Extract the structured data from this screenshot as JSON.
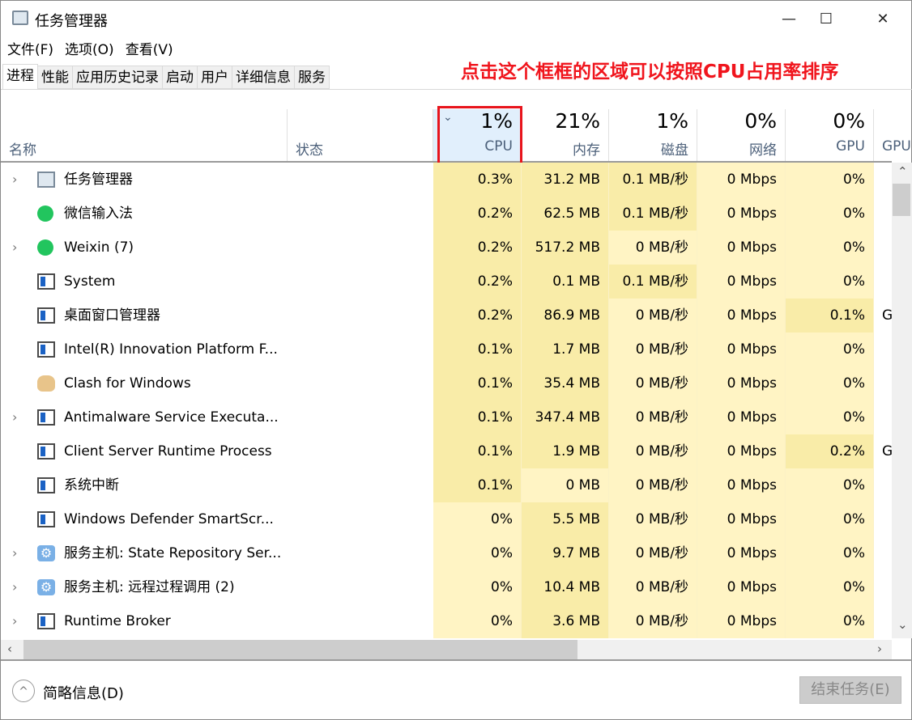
{
  "window": {
    "title": "任务管理器",
    "minimize": "—",
    "maximize": "☐",
    "close": "✕"
  },
  "menu": [
    "文件(F)",
    "选项(O)",
    "查看(V)"
  ],
  "tabs": [
    "进程",
    "性能",
    "应用历史记录",
    "启动",
    "用户",
    "详细信息",
    "服务"
  ],
  "annotation": "点击这个框框的区域可以按照CPU占用率排序",
  "header": {
    "name": "名称",
    "status": "状态",
    "cpu": {
      "pct": "1%",
      "label": "CPU",
      "sorted": "descending"
    },
    "memory": {
      "pct": "21%",
      "label": "内存"
    },
    "disk": {
      "pct": "1%",
      "label": "磁盘"
    },
    "network": {
      "pct": "0%",
      "label": "网络"
    },
    "gpu": {
      "pct": "0%",
      "label": "GPU"
    },
    "gpu_engine": {
      "label": "GPU"
    }
  },
  "heat_colors": {
    "low": "#fff4c4",
    "high": "#f9eca8",
    "selected_header": "#e1effc",
    "annotation": "#f0151d"
  },
  "rows": [
    {
      "name": "任务管理器",
      "icon": "task-manager-icon",
      "expandable": true,
      "cpu": "0.3%",
      "memory": "31.2 MB",
      "disk": "0.1 MB/秒",
      "network": "0 Mbps",
      "gpu": "0%",
      "gpu_engine": "",
      "heat": [
        1,
        1,
        1,
        0,
        0
      ]
    },
    {
      "name": "微信输入法",
      "icon": "wechat-ime-icon",
      "expandable": false,
      "cpu": "0.2%",
      "memory": "62.5 MB",
      "disk": "0.1 MB/秒",
      "network": "0 Mbps",
      "gpu": "0%",
      "gpu_engine": "",
      "heat": [
        1,
        1,
        1,
        0,
        0
      ]
    },
    {
      "name": "Weixin (7)",
      "icon": "weixin-icon",
      "expandable": true,
      "cpu": "0.2%",
      "memory": "517.2 MB",
      "disk": "0 MB/秒",
      "network": "0 Mbps",
      "gpu": "0%",
      "gpu_engine": "",
      "heat": [
        1,
        1,
        0,
        0,
        0
      ]
    },
    {
      "name": "System",
      "icon": "app-window-icon",
      "expandable": false,
      "cpu": "0.2%",
      "memory": "0.1 MB",
      "disk": "0.1 MB/秒",
      "network": "0 Mbps",
      "gpu": "0%",
      "gpu_engine": "",
      "heat": [
        1,
        1,
        1,
        0,
        0
      ]
    },
    {
      "name": "桌面窗口管理器",
      "icon": "app-window-icon",
      "expandable": false,
      "cpu": "0.2%",
      "memory": "86.9 MB",
      "disk": "0 MB/秒",
      "network": "0 Mbps",
      "gpu": "0.1%",
      "gpu_engine": "G",
      "heat": [
        1,
        1,
        0,
        0,
        1
      ]
    },
    {
      "name": "Intel(R) Innovation Platform F...",
      "icon": "app-window-icon",
      "expandable": false,
      "cpu": "0.1%",
      "memory": "1.7 MB",
      "disk": "0 MB/秒",
      "network": "0 Mbps",
      "gpu": "0%",
      "gpu_engine": "",
      "heat": [
        1,
        1,
        0,
        0,
        0
      ]
    },
    {
      "name": "Clash for Windows",
      "icon": "clash-cat-icon",
      "expandable": false,
      "cpu": "0.1%",
      "memory": "35.4 MB",
      "disk": "0 MB/秒",
      "network": "0 Mbps",
      "gpu": "0%",
      "gpu_engine": "",
      "heat": [
        1,
        1,
        0,
        0,
        0
      ]
    },
    {
      "name": "Antimalware Service Executa...",
      "icon": "app-window-icon",
      "expandable": true,
      "cpu": "0.1%",
      "memory": "347.4 MB",
      "disk": "0 MB/秒",
      "network": "0 Mbps",
      "gpu": "0%",
      "gpu_engine": "",
      "heat": [
        1,
        1,
        0,
        0,
        0
      ]
    },
    {
      "name": "Client Server Runtime Process",
      "icon": "app-window-icon",
      "expandable": false,
      "cpu": "0.1%",
      "memory": "1.9 MB",
      "disk": "0 MB/秒",
      "network": "0 Mbps",
      "gpu": "0.2%",
      "gpu_engine": "G",
      "heat": [
        1,
        1,
        0,
        0,
        1
      ]
    },
    {
      "name": "系统中断",
      "icon": "app-window-icon",
      "expandable": false,
      "cpu": "0.1%",
      "memory": "0 MB",
      "disk": "0 MB/秒",
      "network": "0 Mbps",
      "gpu": "0%",
      "gpu_engine": "",
      "heat": [
        1,
        0,
        0,
        0,
        0
      ]
    },
    {
      "name": "Windows Defender SmartScr...",
      "icon": "app-window-icon",
      "expandable": false,
      "cpu": "0%",
      "memory": "5.5 MB",
      "disk": "0 MB/秒",
      "network": "0 Mbps",
      "gpu": "0%",
      "gpu_engine": "",
      "heat": [
        0,
        1,
        0,
        0,
        0
      ]
    },
    {
      "name": "服务主机: State Repository Ser...",
      "icon": "gear-icon",
      "expandable": true,
      "cpu": "0%",
      "memory": "9.7 MB",
      "disk": "0 MB/秒",
      "network": "0 Mbps",
      "gpu": "0%",
      "gpu_engine": "",
      "heat": [
        0,
        1,
        0,
        0,
        0
      ]
    },
    {
      "name": "服务主机: 远程过程调用 (2)",
      "icon": "gear-icon",
      "expandable": true,
      "cpu": "0%",
      "memory": "10.4 MB",
      "disk": "0 MB/秒",
      "network": "0 Mbps",
      "gpu": "0%",
      "gpu_engine": "",
      "heat": [
        0,
        1,
        0,
        0,
        0
      ]
    },
    {
      "name": "Runtime Broker",
      "icon": "app-window-icon",
      "expandable": true,
      "cpu": "0%",
      "memory": "3.6 MB",
      "disk": "0 MB/秒",
      "network": "0 Mbps",
      "gpu": "0%",
      "gpu_engine": "",
      "heat": [
        0,
        1,
        0,
        0,
        0
      ]
    }
  ],
  "footer": {
    "fewer_details": "简略信息(D)",
    "end_task": "结束任务(E)"
  }
}
